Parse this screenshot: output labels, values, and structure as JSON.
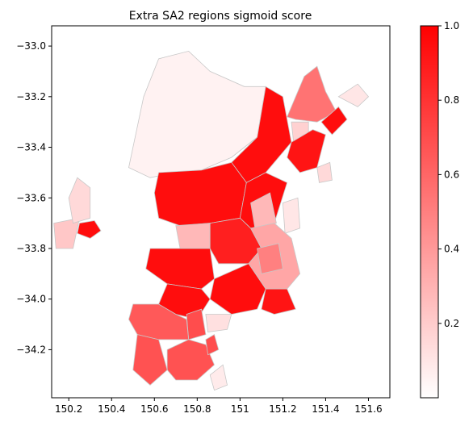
{
  "chart_data": {
    "type": "choropleth",
    "title": "Extra SA2 regions sigmoid score",
    "xlabel": "",
    "ylabel": "",
    "xlim": [
      150.12,
      151.7
    ],
    "ylim": [
      -34.39,
      -32.92
    ],
    "x_ticks": [
      150.2,
      150.4,
      150.6,
      150.8,
      151.0,
      151.2,
      151.4,
      151.6
    ],
    "x_tick_labels": [
      "150.2",
      "150.4",
      "150.6",
      "150.8",
      "151",
      "151.2",
      "151.4",
      "151.6"
    ],
    "y_ticks": [
      -33.0,
      -33.2,
      -33.4,
      -33.6,
      -33.8,
      -34.0,
      -34.2
    ],
    "y_tick_labels": [
      "−33.0",
      "−33.2",
      "−33.4",
      "−33.6",
      "−33.8",
      "−34.0",
      "−34.2"
    ],
    "colorbar": {
      "range": [
        0,
        1
      ],
      "ticks": [
        0.2,
        0.4,
        0.6,
        0.8,
        1.0
      ],
      "tick_labels": [
        "0.2",
        "0.4",
        "0.6",
        "0.8",
        "1.0"
      ],
      "color_low": "#ffffff",
      "color_high": "#ff0000"
    },
    "edge_color": "#c8c8c8",
    "regions": [
      {
        "score": 0.05,
        "coords": [
          [
            150.48,
            -33.48
          ],
          [
            150.55,
            -33.2
          ],
          [
            150.62,
            -33.05
          ],
          [
            150.76,
            -33.02
          ],
          [
            150.86,
            -33.1
          ],
          [
            151.02,
            -33.16
          ],
          [
            151.12,
            -33.16
          ],
          [
            151.08,
            -33.36
          ],
          [
            150.96,
            -33.44
          ],
          [
            150.82,
            -33.49
          ],
          [
            150.7,
            -33.5
          ],
          [
            150.58,
            -33.52
          ]
        ]
      },
      {
        "score": 0.95,
        "coords": [
          [
            151.12,
            -33.16
          ],
          [
            151.2,
            -33.2
          ],
          [
            151.24,
            -33.38
          ],
          [
            151.12,
            -33.5
          ],
          [
            151.03,
            -33.54
          ],
          [
            150.96,
            -33.46
          ],
          [
            151.08,
            -33.36
          ]
        ]
      },
      {
        "score": 0.55,
        "coords": [
          [
            151.22,
            -33.28
          ],
          [
            151.3,
            -33.12
          ],
          [
            151.36,
            -33.08
          ],
          [
            151.4,
            -33.18
          ],
          [
            151.45,
            -33.26
          ],
          [
            151.36,
            -33.3
          ],
          [
            151.26,
            -33.29
          ]
        ]
      },
      {
        "score": 0.18,
        "coords": [
          [
            151.24,
            -33.3
          ],
          [
            151.32,
            -33.3
          ],
          [
            151.32,
            -33.38
          ],
          [
            151.25,
            -33.38
          ]
        ]
      },
      {
        "score": 0.92,
        "coords": [
          [
            151.24,
            -33.38
          ],
          [
            151.34,
            -33.33
          ],
          [
            151.4,
            -33.35
          ],
          [
            151.36,
            -33.48
          ],
          [
            151.28,
            -33.5
          ],
          [
            151.22,
            -33.44
          ]
        ]
      },
      {
        "score": 0.95,
        "coords": [
          [
            151.38,
            -33.3
          ],
          [
            151.46,
            -33.24
          ],
          [
            151.5,
            -33.29
          ],
          [
            151.43,
            -33.35
          ]
        ]
      },
      {
        "score": 0.15,
        "coords": [
          [
            151.36,
            -33.48
          ],
          [
            151.42,
            -33.46
          ],
          [
            151.43,
            -33.53
          ],
          [
            151.37,
            -33.54
          ]
        ]
      },
      {
        "score": 0.1,
        "coords": [
          [
            151.46,
            -33.2
          ],
          [
            151.55,
            -33.15
          ],
          [
            151.6,
            -33.2
          ],
          [
            151.55,
            -33.24
          ]
        ]
      },
      {
        "score": 0.95,
        "coords": [
          [
            150.62,
            -33.5
          ],
          [
            150.82,
            -33.49
          ],
          [
            150.96,
            -33.46
          ],
          [
            151.03,
            -33.54
          ],
          [
            151.0,
            -33.68
          ],
          [
            150.86,
            -33.7
          ],
          [
            150.72,
            -33.71
          ],
          [
            150.62,
            -33.68
          ],
          [
            150.6,
            -33.58
          ]
        ]
      },
      {
        "score": 0.95,
        "coords": [
          [
            151.03,
            -33.54
          ],
          [
            151.12,
            -33.5
          ],
          [
            151.22,
            -33.54
          ],
          [
            151.16,
            -33.7
          ],
          [
            151.05,
            -33.72
          ],
          [
            151.0,
            -33.68
          ]
        ]
      },
      {
        "score": 0.28,
        "coords": [
          [
            151.05,
            -33.62
          ],
          [
            151.14,
            -33.58
          ],
          [
            151.17,
            -33.7
          ],
          [
            151.07,
            -33.72
          ]
        ]
      },
      {
        "score": 0.1,
        "coords": [
          [
            151.2,
            -33.62
          ],
          [
            151.27,
            -33.6
          ],
          [
            151.28,
            -33.72
          ],
          [
            151.21,
            -33.74
          ]
        ]
      },
      {
        "score": 0.95,
        "coords": [
          [
            150.25,
            -33.7
          ],
          [
            150.32,
            -33.69
          ],
          [
            150.35,
            -33.73
          ],
          [
            150.3,
            -33.76
          ],
          [
            150.24,
            -33.74
          ]
        ]
      },
      {
        "score": 0.22,
        "coords": [
          [
            150.13,
            -33.7
          ],
          [
            150.25,
            -33.68
          ],
          [
            150.22,
            -33.8
          ],
          [
            150.14,
            -33.8
          ]
        ]
      },
      {
        "score": 0.15,
        "coords": [
          [
            150.2,
            -33.6
          ],
          [
            150.24,
            -33.52
          ],
          [
            150.3,
            -33.56
          ],
          [
            150.3,
            -33.68
          ],
          [
            150.22,
            -33.7
          ]
        ]
      },
      {
        "score": 0.28,
        "coords": [
          [
            150.7,
            -33.71
          ],
          [
            150.86,
            -33.7
          ],
          [
            150.86,
            -33.8
          ],
          [
            150.72,
            -33.8
          ]
        ]
      },
      {
        "score": 0.95,
        "coords": [
          [
            150.58,
            -33.8
          ],
          [
            150.72,
            -33.8
          ],
          [
            150.86,
            -33.8
          ],
          [
            150.88,
            -33.92
          ],
          [
            150.82,
            -33.96
          ],
          [
            150.66,
            -33.94
          ],
          [
            150.56,
            -33.88
          ]
        ]
      },
      {
        "score": 0.88,
        "coords": [
          [
            150.86,
            -33.7
          ],
          [
            151.0,
            -33.68
          ],
          [
            151.05,
            -33.72
          ],
          [
            151.1,
            -33.8
          ],
          [
            151.04,
            -33.86
          ],
          [
            150.9,
            -33.86
          ],
          [
            150.86,
            -33.8
          ]
        ]
      },
      {
        "score": 0.35,
        "coords": [
          [
            151.05,
            -33.72
          ],
          [
            151.16,
            -33.7
          ],
          [
            151.24,
            -33.76
          ],
          [
            151.28,
            -33.9
          ],
          [
            151.22,
            -33.96
          ],
          [
            151.12,
            -33.96
          ],
          [
            151.04,
            -33.86
          ],
          [
            151.1,
            -33.8
          ]
        ]
      },
      {
        "score": 0.5,
        "coords": [
          [
            151.08,
            -33.8
          ],
          [
            151.18,
            -33.78
          ],
          [
            151.2,
            -33.88
          ],
          [
            151.1,
            -33.9
          ]
        ]
      },
      {
        "score": 0.95,
        "coords": [
          [
            150.88,
            -33.92
          ],
          [
            151.04,
            -33.86
          ],
          [
            151.12,
            -33.96
          ],
          [
            151.08,
            -34.04
          ],
          [
            150.96,
            -34.06
          ],
          [
            150.86,
            -34.0
          ]
        ]
      },
      {
        "score": 0.92,
        "coords": [
          [
            151.12,
            -33.96
          ],
          [
            151.22,
            -33.96
          ],
          [
            151.26,
            -34.04
          ],
          [
            151.16,
            -34.06
          ],
          [
            151.1,
            -34.04
          ]
        ]
      },
      {
        "score": 0.95,
        "coords": [
          [
            150.66,
            -33.94
          ],
          [
            150.82,
            -33.96
          ],
          [
            150.86,
            -34.0
          ],
          [
            150.8,
            -34.08
          ],
          [
            150.7,
            -34.06
          ],
          [
            150.62,
            -34.02
          ]
        ]
      },
      {
        "score": 0.7,
        "coords": [
          [
            150.75,
            -34.06
          ],
          [
            150.82,
            -34.04
          ],
          [
            150.84,
            -34.14
          ],
          [
            150.76,
            -34.16
          ]
        ]
      },
      {
        "score": 0.12,
        "coords": [
          [
            150.84,
            -34.06
          ],
          [
            150.96,
            -34.06
          ],
          [
            150.94,
            -34.12
          ],
          [
            150.85,
            -34.13
          ]
        ]
      },
      {
        "score": 0.65,
        "coords": [
          [
            150.5,
            -34.02
          ],
          [
            150.62,
            -34.02
          ],
          [
            150.7,
            -34.06
          ],
          [
            150.75,
            -34.08
          ],
          [
            150.76,
            -34.16
          ],
          [
            150.62,
            -34.16
          ],
          [
            150.52,
            -34.14
          ],
          [
            150.48,
            -34.08
          ]
        ]
      },
      {
        "score": 0.68,
        "coords": [
          [
            150.52,
            -34.14
          ],
          [
            150.62,
            -34.16
          ],
          [
            150.66,
            -34.28
          ],
          [
            150.58,
            -34.34
          ],
          [
            150.5,
            -34.28
          ]
        ]
      },
      {
        "score": 0.68,
        "coords": [
          [
            150.66,
            -34.2
          ],
          [
            150.76,
            -34.16
          ],
          [
            150.84,
            -34.18
          ],
          [
            150.88,
            -34.26
          ],
          [
            150.8,
            -34.32
          ],
          [
            150.7,
            -34.32
          ],
          [
            150.66,
            -34.28
          ]
        ]
      },
      {
        "score": 0.7,
        "coords": [
          [
            150.84,
            -34.16
          ],
          [
            150.88,
            -34.14
          ],
          [
            150.9,
            -34.2
          ],
          [
            150.85,
            -34.22
          ]
        ]
      },
      {
        "score": 0.08,
        "coords": [
          [
            150.86,
            -34.3
          ],
          [
            150.92,
            -34.26
          ],
          [
            150.94,
            -34.34
          ],
          [
            150.88,
            -34.36
          ]
        ]
      }
    ]
  }
}
